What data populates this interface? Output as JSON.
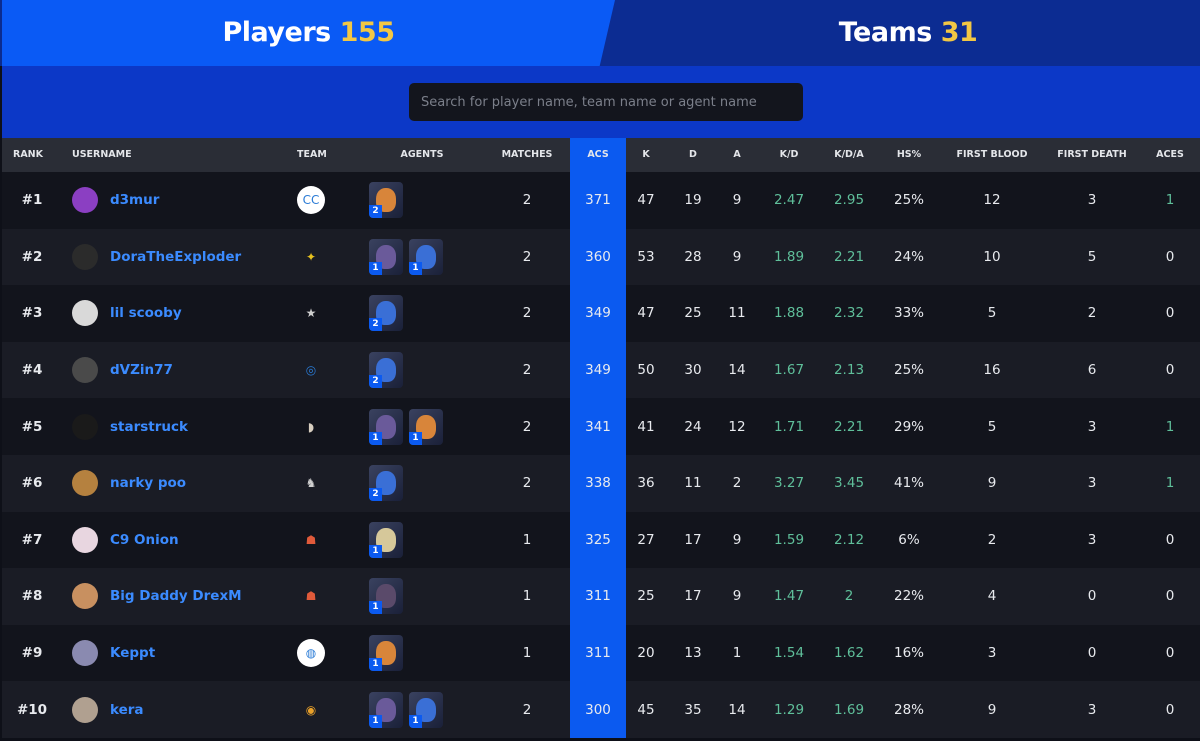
{
  "tabs": {
    "players": {
      "label": "Players",
      "count": "155"
    },
    "teams": {
      "label": "Teams",
      "count": "31"
    }
  },
  "search": {
    "placeholder": "Search for player name, team name or agent name",
    "value": ""
  },
  "columns": {
    "rank": "RANK",
    "username": "USERNAME",
    "team": "TEAM",
    "agents": "AGENTS",
    "matches": "MATCHES",
    "acs": "ACS",
    "k": "K",
    "d": "D",
    "a": "A",
    "kd": "K/D",
    "kda": "K/D/A",
    "hs": "HS%",
    "first_blood": "FIRST BLOOD",
    "first_death": "FIRST DEATH",
    "aces": "ACES"
  },
  "colors": {
    "accent": "#0b5af0",
    "gold": "#f2c744",
    "link": "#3b8bff",
    "positive": "#5fbf9a"
  },
  "rows": [
    {
      "rank": "#1",
      "username": "d3mur",
      "avatar_color": "#8b3fc2",
      "team_logo": "circle-cc-logo",
      "team_color": "#ffffff",
      "team_glyph": "CC",
      "agents": [
        {
          "name": "agent-raze-icon",
          "count": "2",
          "color": "#d8853a"
        }
      ],
      "matches": "2",
      "acs": "371",
      "k": "47",
      "d": "19",
      "a": "9",
      "kd": "2.47",
      "kda": "2.95",
      "hs": "25%",
      "first_blood": "12",
      "first_death": "3",
      "aces": "1"
    },
    {
      "rank": "#2",
      "username": "DoraTheExploder",
      "avatar_color": "#2b2b2b",
      "team_logo": "yellow-m-logo",
      "team_color": "#e8c21e",
      "team_glyph": "✦",
      "agents": [
        {
          "name": "agent-reyna-icon",
          "count": "1",
          "color": "#6a5a9a"
        },
        {
          "name": "agent-jett-icon",
          "count": "1",
          "color": "#3a6fd6"
        }
      ],
      "matches": "2",
      "acs": "360",
      "k": "53",
      "d": "28",
      "a": "9",
      "kd": "1.89",
      "kda": "2.21",
      "hs": "24%",
      "first_blood": "10",
      "first_death": "5",
      "aces": "0"
    },
    {
      "rank": "#3",
      "username": "lil scooby",
      "avatar_color": "#d9d9d9",
      "team_logo": "star-logo",
      "team_color": "#cfcfcf",
      "team_glyph": "★",
      "agents": [
        {
          "name": "agent-jett-icon",
          "count": "2",
          "color": "#3a6fd6"
        }
      ],
      "matches": "2",
      "acs": "349",
      "k": "47",
      "d": "25",
      "a": "11",
      "kd": "1.88",
      "kda": "2.32",
      "hs": "33%",
      "first_blood": "5",
      "first_death": "2",
      "aces": "0"
    },
    {
      "rank": "#4",
      "username": "dVZin77",
      "avatar_color": "#4a4a4a",
      "team_logo": "ring-logo",
      "team_color": "#2a7bd6",
      "team_glyph": "◎",
      "agents": [
        {
          "name": "agent-jett-icon",
          "count": "2",
          "color": "#3a6fd6"
        }
      ],
      "matches": "2",
      "acs": "349",
      "k": "50",
      "d": "30",
      "a": "14",
      "kd": "1.67",
      "kda": "2.13",
      "hs": "25%",
      "first_blood": "16",
      "first_death": "6",
      "aces": "0"
    },
    {
      "rank": "#5",
      "username": "starstruck",
      "avatar_color": "#1a1a1a",
      "team_logo": "ghost-logo",
      "team_color": "#d8cfc0",
      "team_glyph": "◗",
      "agents": [
        {
          "name": "agent-reyna-icon",
          "count": "1",
          "color": "#6a5a9a"
        },
        {
          "name": "agent-raze-icon",
          "count": "1",
          "color": "#d8853a"
        }
      ],
      "matches": "2",
      "acs": "341",
      "k": "41",
      "d": "24",
      "a": "12",
      "kd": "1.71",
      "kda": "2.21",
      "hs": "29%",
      "first_blood": "5",
      "first_death": "3",
      "aces": "1"
    },
    {
      "rank": "#6",
      "username": "narky poo",
      "avatar_color": "#b5813f",
      "team_logo": "knight-logo",
      "team_color": "#cfcfcf",
      "team_glyph": "♞",
      "agents": [
        {
          "name": "agent-jett-icon",
          "count": "2",
          "color": "#3a6fd6"
        }
      ],
      "matches": "2",
      "acs": "338",
      "k": "36",
      "d": "11",
      "a": "2",
      "kd": "3.27",
      "kda": "3.45",
      "hs": "41%",
      "first_blood": "9",
      "first_death": "3",
      "aces": "1"
    },
    {
      "rank": "#7",
      "username": "C9 Onion",
      "avatar_color": "#e8d6e0",
      "team_logo": "mascot-logo",
      "team_color": "#e05a3a",
      "team_glyph": "☗",
      "agents": [
        {
          "name": "agent-chamber-icon",
          "count": "1",
          "color": "#d6c89a"
        }
      ],
      "matches": "1",
      "acs": "325",
      "k": "27",
      "d": "17",
      "a": "9",
      "kd": "1.59",
      "kda": "2.12",
      "hs": "6%",
      "first_blood": "2",
      "first_death": "3",
      "aces": "0"
    },
    {
      "rank": "#8",
      "username": "Big Daddy DrexM",
      "avatar_color": "#c89060",
      "team_logo": "mascot-logo",
      "team_color": "#e05a3a",
      "team_glyph": "☗",
      "agents": [
        {
          "name": "agent-fade-icon",
          "count": "1",
          "color": "#5a4a6a"
        }
      ],
      "matches": "1",
      "acs": "311",
      "k": "25",
      "d": "17",
      "a": "9",
      "kd": "1.47",
      "kda": "2",
      "hs": "22%",
      "first_blood": "4",
      "first_death": "0",
      "aces": "0"
    },
    {
      "rank": "#9",
      "username": "Keppt",
      "avatar_color": "#8a8ab0",
      "team_logo": "squad-logo",
      "team_color": "#ffffff",
      "team_glyph": "◍",
      "agents": [
        {
          "name": "agent-raze-icon",
          "count": "1",
          "color": "#d8853a"
        }
      ],
      "matches": "1",
      "acs": "311",
      "k": "20",
      "d": "13",
      "a": "1",
      "kd": "1.54",
      "kda": "1.62",
      "hs": "16%",
      "first_blood": "3",
      "first_death": "0",
      "aces": "0"
    },
    {
      "rank": "#10",
      "username": "kera",
      "avatar_color": "#b0a090",
      "team_logo": "eye-logo",
      "team_color": "#e8a02a",
      "team_glyph": "◉",
      "agents": [
        {
          "name": "agent-reyna-icon",
          "count": "1",
          "color": "#6a5a9a"
        },
        {
          "name": "agent-jett-icon",
          "count": "1",
          "color": "#3a6fd6"
        }
      ],
      "matches": "2",
      "acs": "300",
      "k": "45",
      "d": "35",
      "a": "14",
      "kd": "1.29",
      "kda": "1.69",
      "hs": "28%",
      "first_blood": "9",
      "first_death": "3",
      "aces": "0"
    }
  ]
}
